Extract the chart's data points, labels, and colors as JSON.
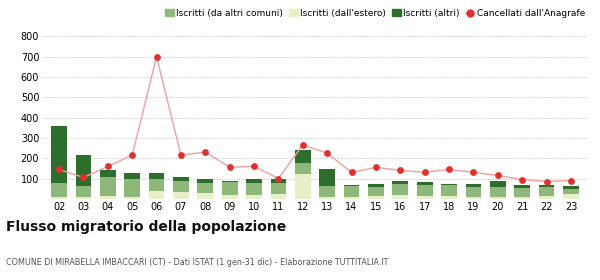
{
  "years": [
    "02",
    "03",
    "04",
    "05",
    "06",
    "07",
    "08",
    "09",
    "10",
    "11",
    "12",
    "13",
    "14",
    "15",
    "16",
    "17",
    "18",
    "19",
    "20",
    "21",
    "22",
    "23"
  ],
  "iscritti_altri_comuni": [
    70,
    55,
    90,
    90,
    60,
    55,
    50,
    65,
    60,
    55,
    55,
    55,
    55,
    45,
    55,
    55,
    55,
    50,
    50,
    45,
    45,
    25
  ],
  "iscritti_estero": [
    8,
    8,
    15,
    8,
    40,
    35,
    30,
    20,
    20,
    25,
    120,
    8,
    8,
    15,
    20,
    15,
    12,
    8,
    8,
    8,
    15,
    25
  ],
  "iscritti_altri": [
    280,
    155,
    35,
    30,
    25,
    15,
    20,
    5,
    20,
    20,
    65,
    85,
    5,
    15,
    15,
    15,
    5,
    15,
    30,
    15,
    10,
    15
  ],
  "cancellati": [
    145,
    105,
    160,
    215,
    700,
    215,
    230,
    155,
    160,
    100,
    265,
    225,
    130,
    155,
    140,
    130,
    145,
    130,
    115,
    95,
    85,
    90
  ],
  "color_altri_comuni": "#8db87a",
  "color_estero": "#e8f0c8",
  "color_altri": "#2d6e2d",
  "color_cancellati": "#e03030",
  "color_cancellati_line": "#f0a0a0",
  "ylim": [
    0,
    800
  ],
  "yticks": [
    100,
    200,
    300,
    400,
    500,
    600,
    700,
    800
  ],
  "title": "Flusso migratorio della popolazione",
  "subtitle": "COMUNE DI MIRABELLA IMBACCARI (CT) - Dati ISTAT (1 gen-31 dic) - Elaborazione TUTTITALIA.IT",
  "legend_labels": [
    "Iscritti (da altri comuni)",
    "Iscritti (dall'estero)",
    "Iscritti (altri)",
    "Cancellati dall'Anagrafe"
  ],
  "background_color": "#ffffff",
  "grid_color": "#cccccc"
}
